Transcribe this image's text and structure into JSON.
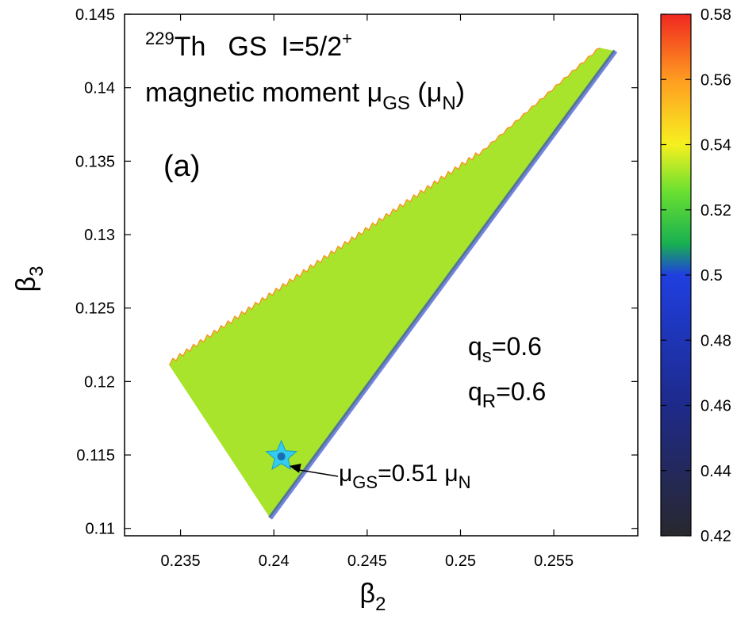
{
  "chart_data": {
    "type": "heatmap",
    "title": {
      "line1": {
        "mass": "229",
        "nucleus": "Th",
        "state": "GS",
        "spin": "I=5/2",
        "parity": "+"
      },
      "line2": {
        "text": "magnetic moment μ",
        "sub": "GS",
        "unit_open": " (μ",
        "unit_sub": "N",
        "unit_close": ")"
      }
    },
    "panel_label": "(a)",
    "xlabel": {
      "base": "β",
      "sub": "2"
    },
    "ylabel": {
      "base": "β",
      "sub": "3"
    },
    "xlim": [
      0.232,
      0.2595
    ],
    "ylim": [
      0.1095,
      0.145
    ],
    "xticks": [
      "0.235",
      "0.24",
      "0.245",
      "0.25",
      "0.255"
    ],
    "yticks": [
      "0.11",
      "0.115",
      "0.12",
      "0.125",
      "0.13",
      "0.135",
      "0.14",
      "0.145"
    ],
    "colorbar": {
      "range": [
        0.42,
        0.58
      ],
      "ticks": [
        "0.42",
        "0.44",
        "0.46",
        "0.48",
        "0.5",
        "0.52",
        "0.54",
        "0.56",
        "0.58"
      ]
    },
    "region": {
      "vertices": [
        {
          "x": 0.2344,
          "y": 0.1211
        },
        {
          "x": 0.2398,
          "y": 0.1107
        },
        {
          "x": 0.2583,
          "y": 0.1425
        },
        {
          "x": 0.2575,
          "y": 0.1427
        },
        {
          "x": 0.251,
          "y": 0.1354
        }
      ],
      "colormap": [
        "#2a2a30",
        "#1e2a90",
        "#1f3fe0",
        "#19c060",
        "#8fe030",
        "#f8f020",
        "#ffb020",
        "#ff5a18",
        "#f02a20"
      ],
      "color_stops": [
        {
          "t": 0.0,
          "value": 0.505
        },
        {
          "t": 0.1,
          "value": 0.507
        },
        {
          "t": 0.22,
          "value": 0.518
        },
        {
          "t": 0.38,
          "value": 0.535
        },
        {
          "t": 0.5,
          "value": 0.552
        },
        {
          "t": 0.68,
          "value": 0.567
        },
        {
          "t": 0.85,
          "value": 0.56
        },
        {
          "t": 1.0,
          "value": 0.555
        }
      ]
    },
    "parameters": [
      {
        "base": "q",
        "sub": "s",
        "value": "=0.6"
      },
      {
        "base": "q",
        "sub": "R",
        "value": "=0.6"
      }
    ],
    "marker": {
      "x": 0.2404,
      "y": 0.1149,
      "color": "#33ccee",
      "label": {
        "base": "μ",
        "sub": "GS",
        "value": "=0.51 μ",
        "unit_sub": "N"
      }
    }
  }
}
